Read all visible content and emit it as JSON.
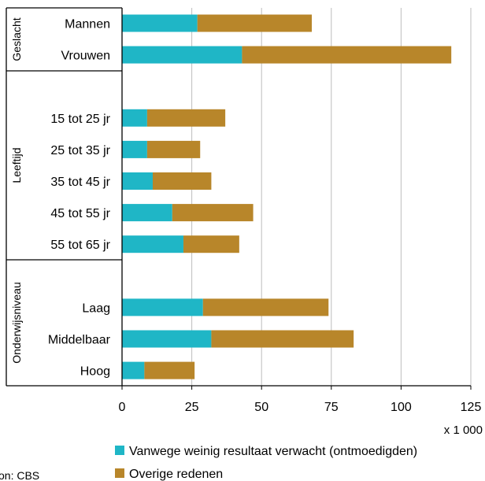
{
  "chart_data": {
    "type": "bar",
    "orientation": "horizontal",
    "stacked": true,
    "categories": [
      "Mannen",
      "Vrouwen",
      "15 tot 25 jr",
      "25 tot 35 jr",
      "35 tot 45 jr",
      "45 tot 55 jr",
      "55 tot 65 jr",
      "Laag",
      "Middelbaar",
      "Hoog"
    ],
    "groups": [
      {
        "label": "Geslacht",
        "categories": [
          "Mannen",
          "Vrouwen"
        ]
      },
      {
        "label": "Leeftijd",
        "categories": [
          "15 tot 25 jr",
          "25 tot 35 jr",
          "35 tot 45 jr",
          "45 tot 55 jr",
          "55 tot 65 jr"
        ]
      },
      {
        "label": "Onderwijsniveau",
        "categories": [
          "Laag",
          "Middelbaar",
          "Hoog"
        ]
      }
    ],
    "series": [
      {
        "name": "Vanwege weinig resultaat verwacht (ontmoedigden)",
        "color": "#1fb6c6",
        "values": [
          27,
          43,
          9,
          9,
          11,
          18,
          22,
          29,
          32,
          8
        ]
      },
      {
        "name": "Overige redenen",
        "color": "#b8862a",
        "values": [
          41,
          75,
          28,
          19,
          21,
          29,
          20,
          45,
          51,
          18
        ]
      }
    ],
    "xlim": [
      0,
      125
    ],
    "xticks": [
      "0",
      "25",
      "50",
      "75",
      "100",
      "125"
    ],
    "unit_label": "x 1 000",
    "grid": true,
    "legend_position": "bottom",
    "source": "on: CBS"
  }
}
